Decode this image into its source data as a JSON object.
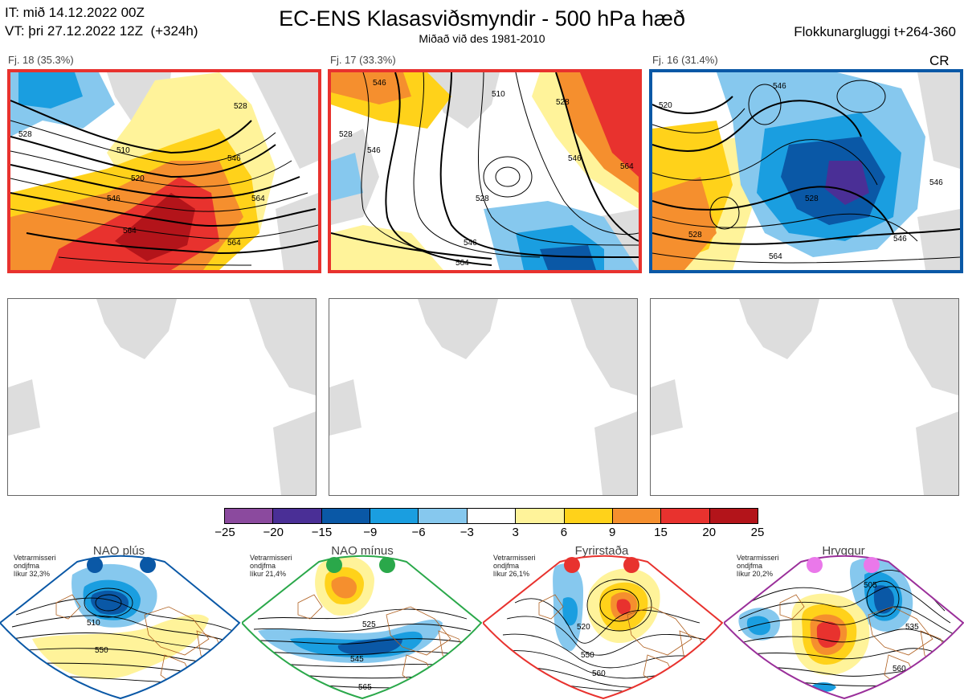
{
  "header": {
    "it_line": "IT: mið 14.12.2022 00Z",
    "vt_line": "VT: þri 27.12.2022 12Z  (+324h)",
    "title": "EC-ENS Klasasviðsmyndir - 500 hPa hæð",
    "subtitle": "Miðað við des 1981-2010",
    "right": "Flokkunargluggi t+264-360"
  },
  "panels": [
    {
      "label": "Fj. 18 (35.3%)",
      "frame_color": "#e8322e",
      "contours": [
        "510",
        "520",
        "528",
        "546",
        "564",
        "564",
        "546",
        "528",
        "520",
        "564"
      ]
    },
    {
      "label": "Fj. 17 (33.3%)",
      "frame_color": "#e8322e",
      "contours": [
        "546",
        "528",
        "510",
        "528",
        "546",
        "564",
        "564",
        "546",
        "528",
        "564"
      ]
    },
    {
      "label": "Fj. 16 (31.4%)",
      "frame_color": "#0a58a6",
      "contours": [
        "520",
        "546",
        "528",
        "546",
        "564",
        "528",
        "546"
      ],
      "badge": "CR"
    }
  ],
  "colorbar": {
    "labels": [
      "−25",
      "−20",
      "−15",
      "−9",
      "−6",
      "−3",
      "3",
      "6",
      "9",
      "15",
      "20",
      "25"
    ],
    "colors": [
      "#8b4a9e",
      "#4a2f96",
      "#0a58a6",
      "#1a9ee0",
      "#86c8ee",
      "#ffffff",
      "#fff39a",
      "#ffd21a",
      "#f58f2e",
      "#e8322e",
      "#b3141a"
    ]
  },
  "regimes": [
    {
      "name": "NAO plús",
      "note": [
        "Vetrarmisseri",
        "ondjfma",
        "líkur 32,3%"
      ],
      "color": "#0a58a6",
      "contours": [
        "510",
        "550"
      ]
    },
    {
      "name": "NAO mínus",
      "note": [
        "Vetrarmisseri",
        "ondjfma",
        "líkur 21,4%"
      ],
      "color": "#2aa84a",
      "contours": [
        "525",
        "545",
        "565"
      ]
    },
    {
      "name": "Fyrirstaða",
      "note": [
        "Vetrarmisseri",
        "ondjfma",
        "líkur 26,1%"
      ],
      "color": "#e8322e",
      "contours": [
        "520",
        "550",
        "560"
      ]
    },
    {
      "name": "Hryggur",
      "note": [
        "Vetrarmisseri",
        "ondjfma",
        "líkur 20,2%"
      ],
      "color": "#9a2f9a",
      "contours": [
        "505",
        "535",
        "560"
      ]
    }
  ]
}
